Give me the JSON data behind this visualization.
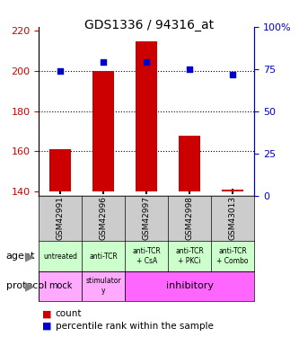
{
  "title": "GDS1336 / 94316_at",
  "samples": [
    "GSM42991",
    "GSM42996",
    "GSM42997",
    "GSM42998",
    "GSM43013"
  ],
  "count_values": [
    161,
    200,
    215,
    168,
    141
  ],
  "count_base": 140,
  "percentile_values": [
    74,
    79,
    79,
    75,
    72
  ],
  "ylim_left": [
    138,
    222
  ],
  "ylim_right": [
    0,
    100
  ],
  "yticks_left": [
    140,
    160,
    180,
    200,
    220
  ],
  "yticks_right": [
    0,
    25,
    50,
    75,
    100
  ],
  "bar_color": "#cc0000",
  "dot_color": "#0000cc",
  "agent_labels": [
    "untreated",
    "anti-TCR",
    "anti-TCR\n+ CsA",
    "anti-TCR\n+ PKCi",
    "anti-TCR\n+ Combo"
  ],
  "agent_bg": "#ccffcc",
  "protocol_mock_bg": "#ffaaff",
  "protocol_stim_bg": "#ffaaff",
  "protocol_inhib_bg": "#ff66ff",
  "sample_header_bg": "#cccccc",
  "legend_count_color": "#cc0000",
  "legend_pct_color": "#0000cc",
  "left_tick_color": "#cc0000",
  "right_tick_color": "#0000cc"
}
